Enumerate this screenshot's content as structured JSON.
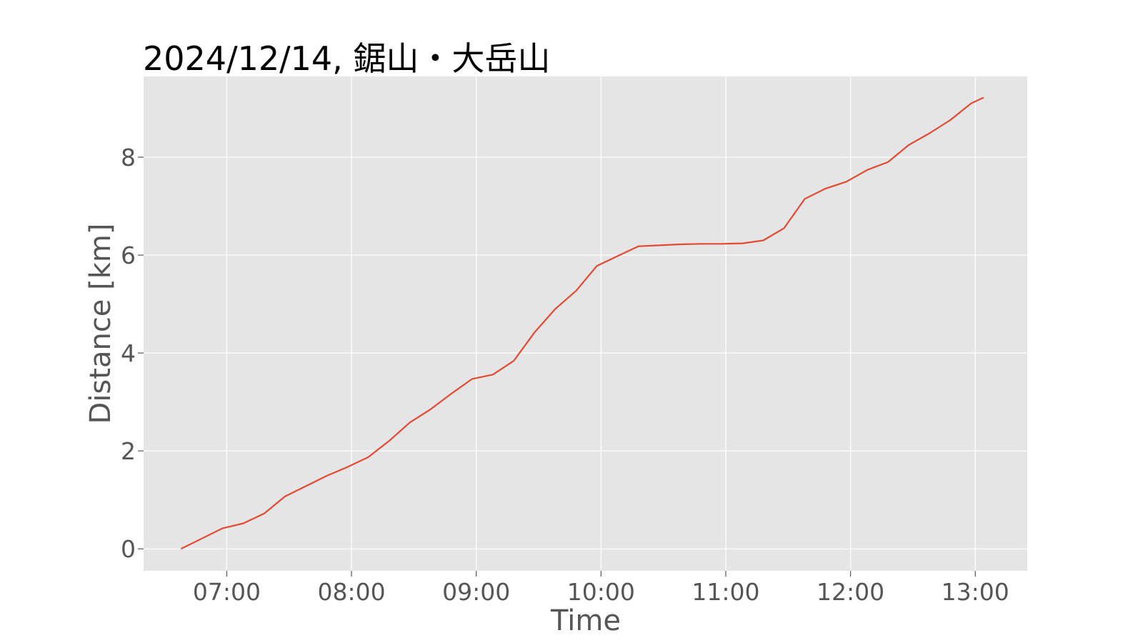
{
  "chart_data": {
    "type": "line",
    "title": "2024/12/14, 鋸山・大岳山",
    "xlabel": "Time",
    "ylabel": "Distance [km]",
    "x_ticks": [
      "07:00",
      "08:00",
      "09:00",
      "10:00",
      "11:00",
      "12:00",
      "13:00"
    ],
    "y_ticks": [
      "0",
      "2",
      "4",
      "6",
      "8"
    ],
    "xlim": [
      "06:20",
      "13:25"
    ],
    "ylim": [
      -0.45,
      9.65
    ],
    "grid": true,
    "colors": {
      "background": "#E5E5E5",
      "grid": "#FFFFFF",
      "line": "#E24A33",
      "text": "#555555"
    },
    "series": [
      {
        "x": [
          "06:38",
          "06:48",
          "06:58",
          "07:08",
          "07:18",
          "07:28",
          "07:38",
          "07:48",
          "07:58",
          "08:08",
          "08:18",
          "08:28",
          "08:38",
          "08:48",
          "08:58",
          "09:08",
          "09:18",
          "09:28",
          "09:38",
          "09:48",
          "09:58",
          "10:08",
          "10:18",
          "10:28",
          "10:38",
          "10:48",
          "10:58",
          "11:08",
          "11:18",
          "11:28",
          "11:38",
          "11:48",
          "11:58",
          "12:08",
          "12:18",
          "12:28",
          "12:38",
          "12:48",
          "12:58",
          "13:04"
        ],
        "values": [
          0.0,
          0.21,
          0.42,
          0.52,
          0.72,
          1.07,
          1.28,
          1.49,
          1.67,
          1.87,
          2.2,
          2.58,
          2.85,
          3.17,
          3.47,
          3.56,
          3.84,
          4.42,
          4.9,
          5.27,
          5.78,
          5.98,
          6.18,
          6.2,
          6.22,
          6.23,
          6.23,
          6.24,
          6.3,
          6.55,
          7.15,
          7.36,
          7.5,
          7.74,
          7.9,
          8.25,
          8.49,
          8.76,
          9.1,
          9.22
        ]
      }
    ]
  }
}
